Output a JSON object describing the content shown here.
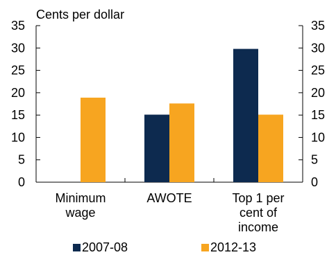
{
  "chart_data": {
    "type": "bar",
    "title": "",
    "ylabel": "Cents per dollar",
    "xlabel": "",
    "ylim": [
      0,
      35
    ],
    "yticks": [
      0,
      5,
      10,
      15,
      20,
      25,
      30,
      35
    ],
    "categories": [
      [
        "Minimum",
        "wage"
      ],
      [
        "AWOTE"
      ],
      [
        "Top 1 per",
        "cent of",
        "income"
      ]
    ],
    "series": [
      {
        "name": "2007-08",
        "color": "#0d2a4f",
        "values": [
          null,
          15.1,
          29.8
        ]
      },
      {
        "name": "2012-13",
        "color": "#f7a520",
        "values": [
          18.9,
          17.6,
          15.1
        ]
      }
    ],
    "legend_position": "bottom",
    "grid": false,
    "right_axis": true
  }
}
